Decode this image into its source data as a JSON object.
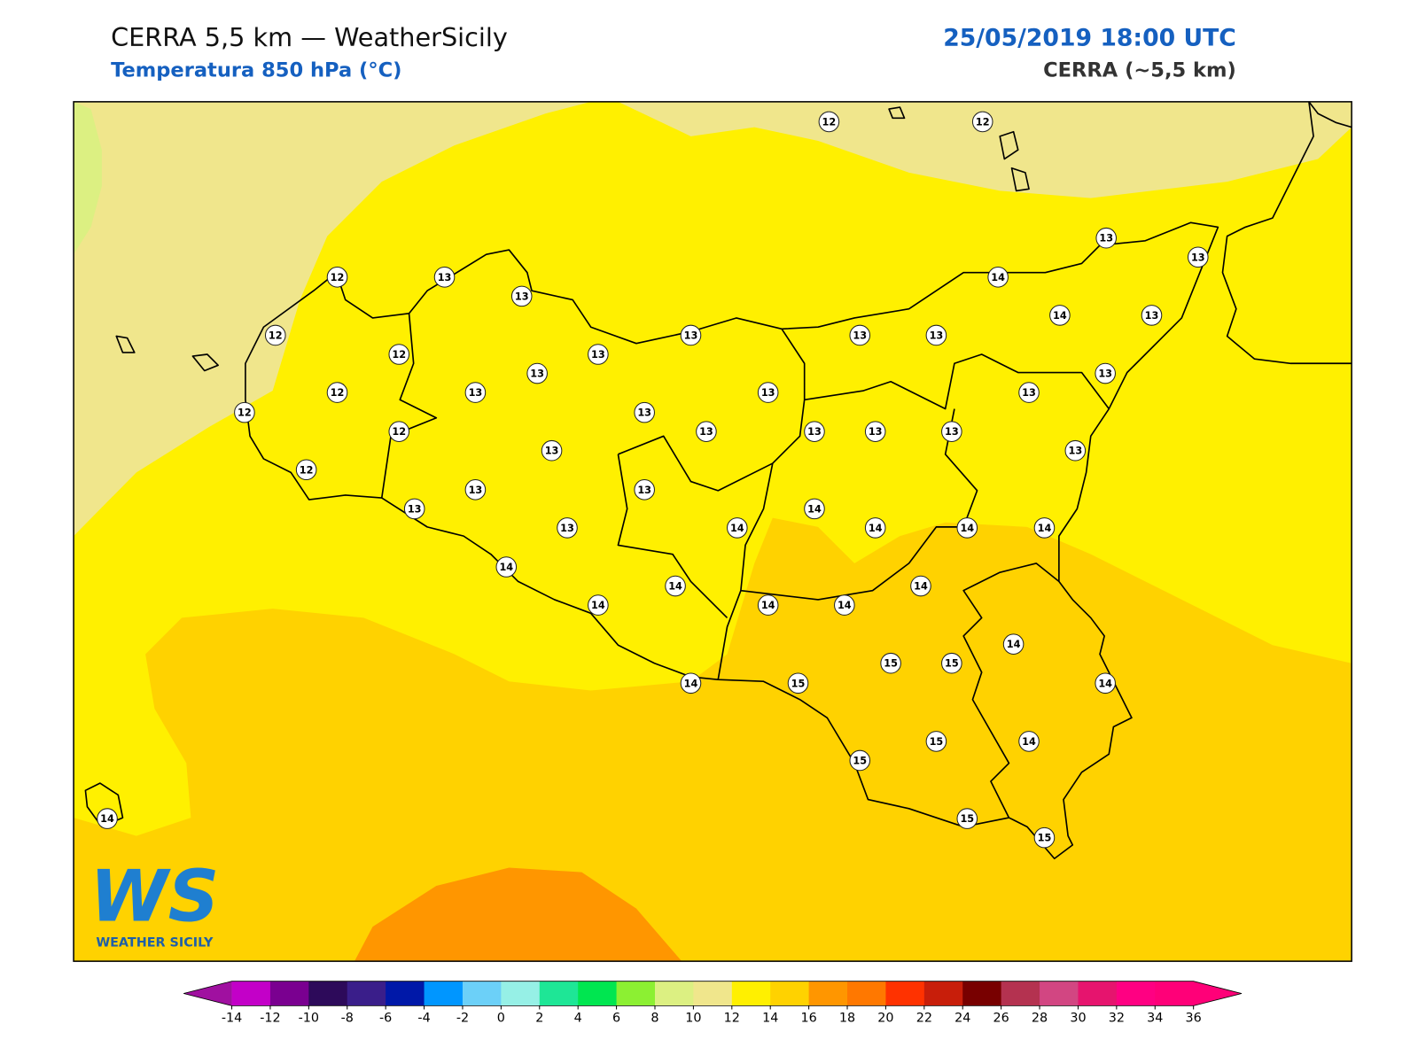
{
  "header": {
    "title": "CERRA 5,5 km — WeatherSicily",
    "subtitle": "Temperatura 850 hPa (°C)",
    "datetime": "25/05/2019 18:00 UTC",
    "model": "CERRA (~5,5 km)"
  },
  "logo": {
    "mark": "WS",
    "name": "WEATHER SICILY"
  },
  "stations": {
    "values": [
      12,
      12,
      13,
      13,
      12,
      13,
      14,
      13,
      14,
      13,
      12,
      13,
      13,
      13,
      12,
      13,
      13,
      13,
      12,
      13,
      13,
      13,
      12,
      13,
      12,
      13,
      13,
      13,
      13,
      13,
      13,
      12,
      13,
      13,
      13,
      14,
      13,
      14,
      14,
      14,
      14,
      14,
      14,
      14,
      14,
      14,
      14,
      14,
      15,
      15,
      14,
      15,
      14,
      15,
      15,
      14,
      14,
      15,
      15
    ]
  },
  "colorbar": {
    "ticks": [
      -14,
      -12,
      -10,
      -8,
      -6,
      -4,
      -2,
      0,
      2,
      4,
      6,
      8,
      10,
      12,
      14,
      16,
      18,
      20,
      22,
      24,
      26,
      28,
      30,
      32,
      34,
      36
    ],
    "colors": [
      "#c300c8",
      "#7a0090",
      "#2d0a5a",
      "#3a1e8a",
      "#0018a8",
      "#0096ff",
      "#6cd0f8",
      "#96f0e6",
      "#1ee696",
      "#00e650",
      "#8cf032",
      "#dcf082",
      "#f0e68c",
      "#fff000",
      "#ffd200",
      "#ff9600",
      "#ff7800",
      "#ff3200",
      "#c81e0a",
      "#780000",
      "#b43250",
      "#d24682",
      "#e6146e",
      "#ff0082",
      "#ff0078"
    ],
    "under": "#a010a0",
    "over": "#ff0078"
  }
}
